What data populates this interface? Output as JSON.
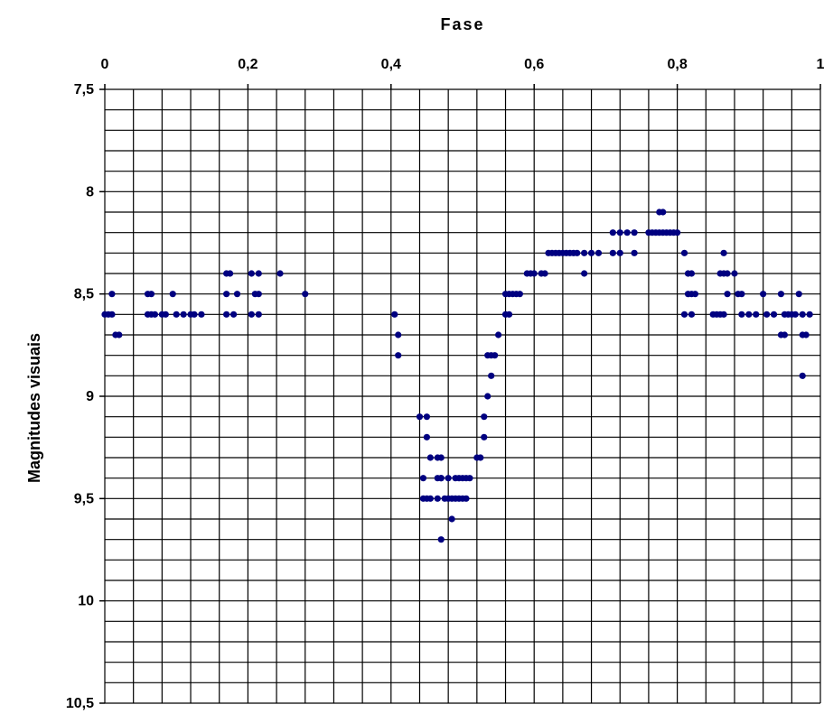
{
  "chart_data": {
    "type": "scatter",
    "title": "",
    "xlabel": "Fase",
    "ylabel": "Magnitudes visuais",
    "xlim": [
      0,
      1
    ],
    "ylim": [
      7.5,
      10.5
    ],
    "y_inverted": true,
    "x_axis_position": "top",
    "grid": true,
    "x_ticks": [
      "0",
      "0,2",
      "0,4",
      "0,6",
      "0,8",
      "1"
    ],
    "y_ticks": [
      "7,5",
      "8",
      "8,5",
      "9",
      "9,5",
      "10",
      "10,5"
    ],
    "marker_color": "#000080",
    "series": [
      {
        "points": [
          [
            0.0,
            8.6
          ],
          [
            0.005,
            8.6
          ],
          [
            0.01,
            8.5
          ],
          [
            0.01,
            8.6
          ],
          [
            0.015,
            8.7
          ],
          [
            0.02,
            8.7
          ],
          [
            0.06,
            8.5
          ],
          [
            0.065,
            8.5
          ],
          [
            0.06,
            8.6
          ],
          [
            0.065,
            8.6
          ],
          [
            0.07,
            8.6
          ],
          [
            0.08,
            8.6
          ],
          [
            0.085,
            8.6
          ],
          [
            0.095,
            8.5
          ],
          [
            0.1,
            8.6
          ],
          [
            0.11,
            8.6
          ],
          [
            0.12,
            8.6
          ],
          [
            0.125,
            8.6
          ],
          [
            0.135,
            8.6
          ],
          [
            0.17,
            8.4
          ],
          [
            0.175,
            8.4
          ],
          [
            0.17,
            8.5
          ],
          [
            0.17,
            8.6
          ],
          [
            0.18,
            8.6
          ],
          [
            0.185,
            8.5
          ],
          [
            0.205,
            8.4
          ],
          [
            0.215,
            8.4
          ],
          [
            0.21,
            8.5
          ],
          [
            0.215,
            8.5
          ],
          [
            0.205,
            8.6
          ],
          [
            0.215,
            8.6
          ],
          [
            0.245,
            8.4
          ],
          [
            0.28,
            8.5
          ],
          [
            0.405,
            8.6
          ],
          [
            0.41,
            8.7
          ],
          [
            0.41,
            8.8
          ],
          [
            0.44,
            9.1
          ],
          [
            0.45,
            9.1
          ],
          [
            0.45,
            9.2
          ],
          [
            0.455,
            9.3
          ],
          [
            0.465,
            9.3
          ],
          [
            0.47,
            9.3
          ],
          [
            0.445,
            9.4
          ],
          [
            0.465,
            9.4
          ],
          [
            0.47,
            9.4
          ],
          [
            0.445,
            9.5
          ],
          [
            0.45,
            9.5
          ],
          [
            0.455,
            9.5
          ],
          [
            0.465,
            9.5
          ],
          [
            0.475,
            9.5
          ],
          [
            0.48,
            9.5
          ],
          [
            0.47,
            9.7
          ],
          [
            0.47,
            9.4
          ],
          [
            0.485,
            9.5
          ],
          [
            0.49,
            9.5
          ],
          [
            0.495,
            9.5
          ],
          [
            0.5,
            9.5
          ],
          [
            0.505,
            9.5
          ],
          [
            0.49,
            9.4
          ],
          [
            0.495,
            9.4
          ],
          [
            0.5,
            9.4
          ],
          [
            0.505,
            9.4
          ],
          [
            0.51,
            9.4
          ],
          [
            0.48,
            9.4
          ],
          [
            0.485,
            9.6
          ],
          [
            0.52,
            9.3
          ],
          [
            0.525,
            9.3
          ],
          [
            0.53,
            9.2
          ],
          [
            0.53,
            9.1
          ],
          [
            0.535,
            9.0
          ],
          [
            0.54,
            8.9
          ],
          [
            0.535,
            8.8
          ],
          [
            0.54,
            8.8
          ],
          [
            0.545,
            8.8
          ],
          [
            0.55,
            8.7
          ],
          [
            0.56,
            8.6
          ],
          [
            0.565,
            8.6
          ],
          [
            0.56,
            8.5
          ],
          [
            0.565,
            8.5
          ],
          [
            0.57,
            8.5
          ],
          [
            0.575,
            8.5
          ],
          [
            0.58,
            8.5
          ],
          [
            0.59,
            8.4
          ],
          [
            0.595,
            8.4
          ],
          [
            0.6,
            8.4
          ],
          [
            0.61,
            8.4
          ],
          [
            0.615,
            8.4
          ],
          [
            0.62,
            8.3
          ],
          [
            0.625,
            8.3
          ],
          [
            0.63,
            8.3
          ],
          [
            0.635,
            8.3
          ],
          [
            0.64,
            8.3
          ],
          [
            0.645,
            8.3
          ],
          [
            0.65,
            8.3
          ],
          [
            0.655,
            8.3
          ],
          [
            0.66,
            8.3
          ],
          [
            0.67,
            8.3
          ],
          [
            0.68,
            8.3
          ],
          [
            0.69,
            8.3
          ],
          [
            0.67,
            8.4
          ],
          [
            0.71,
            8.2
          ],
          [
            0.72,
            8.2
          ],
          [
            0.73,
            8.2
          ],
          [
            0.74,
            8.2
          ],
          [
            0.71,
            8.3
          ],
          [
            0.72,
            8.3
          ],
          [
            0.74,
            8.3
          ],
          [
            0.76,
            8.2
          ],
          [
            0.765,
            8.2
          ],
          [
            0.77,
            8.2
          ],
          [
            0.775,
            8.2
          ],
          [
            0.78,
            8.2
          ],
          [
            0.785,
            8.2
          ],
          [
            0.79,
            8.2
          ],
          [
            0.795,
            8.2
          ],
          [
            0.8,
            8.2
          ],
          [
            0.775,
            8.1
          ],
          [
            0.78,
            8.1
          ],
          [
            0.81,
            8.3
          ],
          [
            0.815,
            8.4
          ],
          [
            0.82,
            8.4
          ],
          [
            0.815,
            8.5
          ],
          [
            0.82,
            8.5
          ],
          [
            0.825,
            8.5
          ],
          [
            0.81,
            8.6
          ],
          [
            0.82,
            8.6
          ],
          [
            0.85,
            8.6
          ],
          [
            0.855,
            8.6
          ],
          [
            0.86,
            8.6
          ],
          [
            0.865,
            8.6
          ],
          [
            0.87,
            8.5
          ],
          [
            0.86,
            8.4
          ],
          [
            0.865,
            8.4
          ],
          [
            0.87,
            8.4
          ],
          [
            0.88,
            8.4
          ],
          [
            0.865,
            8.3
          ],
          [
            0.885,
            8.5
          ],
          [
            0.89,
            8.5
          ],
          [
            0.89,
            8.6
          ],
          [
            0.9,
            8.6
          ],
          [
            0.91,
            8.6
          ],
          [
            0.925,
            8.6
          ],
          [
            0.92,
            8.5
          ],
          [
            0.935,
            8.6
          ],
          [
            0.945,
            8.5
          ],
          [
            0.945,
            8.7
          ],
          [
            0.95,
            8.7
          ],
          [
            0.95,
            8.6
          ],
          [
            0.955,
            8.6
          ],
          [
            0.96,
            8.6
          ],
          [
            0.965,
            8.6
          ],
          [
            0.97,
            8.5
          ],
          [
            0.975,
            8.6
          ],
          [
            0.975,
            8.7
          ],
          [
            0.98,
            8.7
          ],
          [
            0.985,
            8.6
          ],
          [
            0.975,
            8.9
          ]
        ]
      }
    ]
  }
}
